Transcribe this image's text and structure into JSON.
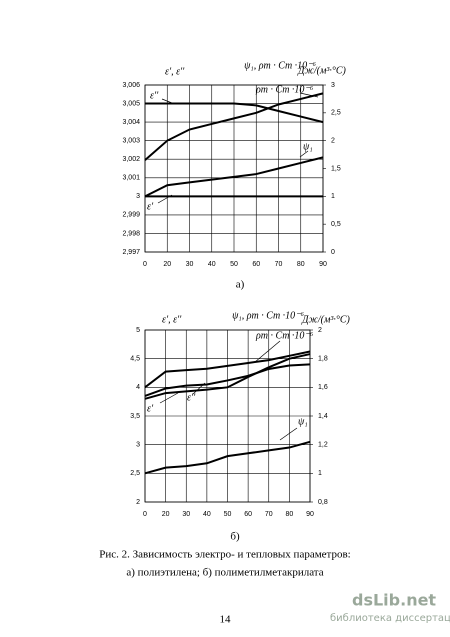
{
  "chart_data": [
    {
      "type": "line",
      "ylabel": "ε',  ε''",
      "y2label": "ψ₁,  ρт · Cт ·10⁻⁶",
      "y2unit": "Дж/(м³·°C)",
      "categories": [
        "0",
        "20",
        "30",
        "40",
        "50",
        "60",
        "70",
        "80",
        "90"
      ],
      "ylim": [
        2.997,
        3.006
      ],
      "yticks": [
        {
          "value": 2.997,
          "label": "2,997"
        },
        {
          "value": 2.998,
          "label": "2,998"
        },
        {
          "value": 2.999,
          "label": "2,999"
        },
        3,
        {
          "value": 3.001,
          "label": "3,001"
        },
        {
          "value": 3.002,
          "label": "3,002"
        },
        {
          "value": 3.003,
          "label": "3,003"
        },
        {
          "value": 3.004,
          "label": "3,004"
        },
        {
          "value": 3.005,
          "label": "3,005"
        },
        {
          "value": 3.006,
          "label": "3,006"
        }
      ],
      "y2lim": [
        0,
        3
      ],
      "y2ticks": [
        0,
        {
          "value": 0.5,
          "label": "0,5"
        },
        1,
        {
          "value": 1.5,
          "label": "1,5"
        },
        2,
        {
          "value": 2.5,
          "label": "2,5"
        },
        3
      ],
      "grid": true,
      "series": [
        {
          "name": "ε''",
          "color": "#000000",
          "values": [
            3.005,
            3.005,
            3.005,
            3.005,
            3.005,
            3.0049,
            3.0046,
            3.0043,
            3.004
          ]
        },
        {
          "name": "ρт · Cт ·10⁻⁶",
          "color": "#000000",
          "axis": "y2",
          "values": [
            1.65,
            2.0,
            2.2,
            2.3,
            2.4,
            2.5,
            2.65,
            2.75,
            2.85
          ]
        },
        {
          "name": "ψ₁",
          "color": "#000000",
          "axis": "y2",
          "values": [
            1.0,
            1.2,
            1.25,
            1.3,
            1.35,
            1.4,
            1.5,
            1.6,
            1.7
          ]
        },
        {
          "name": "ε'",
          "color": "#000000",
          "values": [
            3,
            3,
            3,
            3,
            3,
            3,
            3,
            3,
            3
          ]
        }
      ],
      "subcaption": "а)"
    },
    {
      "type": "line",
      "ylabel": "ε', ε''",
      "y2label": "ψ₁,  ρт · Cт ·10⁻⁶",
      "y2unit": "Дж/(м³·°C)",
      "categories": [
        "0",
        "20",
        "30",
        "40",
        "50",
        "60",
        "70",
        "80",
        "90"
      ],
      "ylim": [
        2,
        5
      ],
      "yticks": [
        2,
        {
          "value": 2.5,
          "label": "2,5"
        },
        3,
        {
          "value": 3.5,
          "label": "3,5"
        },
        4,
        {
          "value": 4.5,
          "label": "4,5"
        },
        5
      ],
      "y2lim": [
        0.8,
        2
      ],
      "y2ticks": [
        {
          "value": 0.8,
          "label": "0,8"
        },
        1,
        {
          "value": 1.2,
          "label": "1,2"
        },
        {
          "value": 1.4,
          "label": "1,4"
        },
        {
          "value": 1.6,
          "label": "1,6"
        },
        {
          "value": 1.8,
          "label": "1,8"
        },
        2
      ],
      "grid": true,
      "series": [
        {
          "name": "ρт · Cт ·10⁻⁶",
          "color": "#000000",
          "axis": "y2",
          "values": [
            1.6,
            1.71,
            1.72,
            1.73,
            1.75,
            1.77,
            1.79,
            1.82,
            1.85
          ]
        },
        {
          "name": "ε'",
          "color": "#000000",
          "values": [
            3.8,
            3.9,
            3.93,
            3.96,
            4.0,
            4.18,
            4.35,
            4.5,
            4.58
          ]
        },
        {
          "name": "ε''",
          "color": "#000000",
          "values": [
            3.85,
            3.98,
            4.03,
            4.05,
            4.12,
            4.2,
            4.32,
            4.38,
            4.4
          ]
        },
        {
          "name": "ψ₁",
          "color": "#000000",
          "axis": "y2",
          "values": [
            1.0,
            1.04,
            1.05,
            1.07,
            1.12,
            1.14,
            1.16,
            1.18,
            1.22
          ]
        }
      ],
      "subcaption": "б)"
    }
  ],
  "caption": [
    "Рис. 2. Зависимость электро- и тепловых параметров:",
    "а) полиэтилена;         б) полиметилметакрилата"
  ],
  "page_number": "14",
  "watermark": {
    "brand": "dsLib.net",
    "tagline": "библиотека диссертаций"
  }
}
